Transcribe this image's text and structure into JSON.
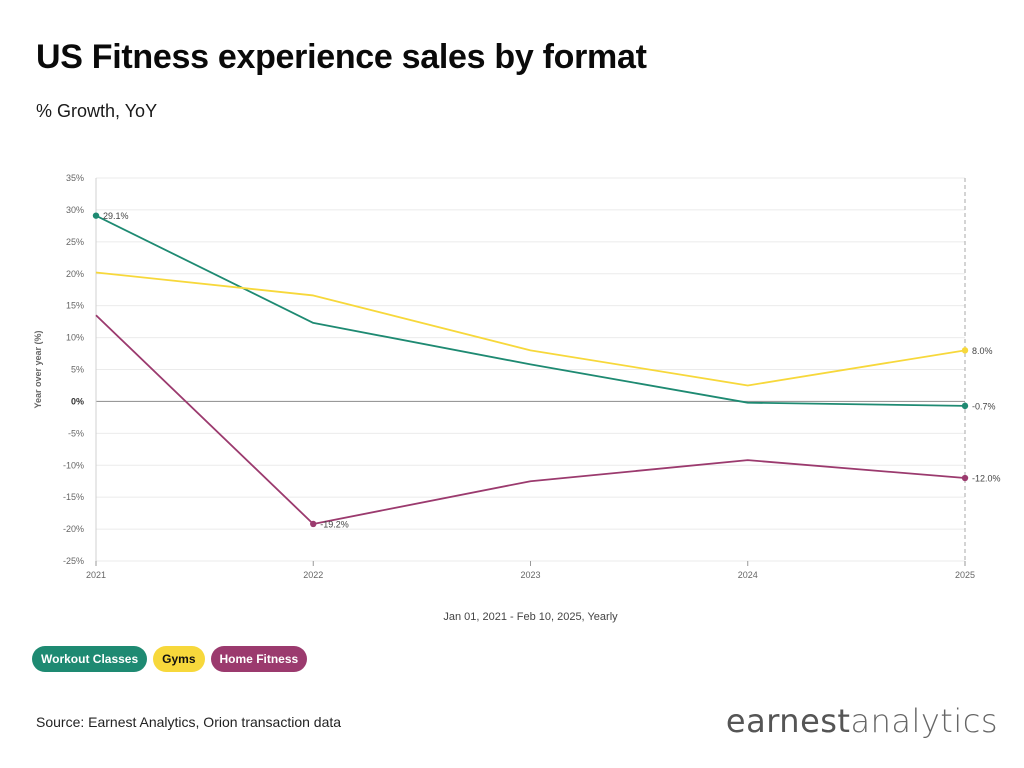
{
  "header": {
    "title": "US Fitness experience sales by format",
    "subtitle": "% Growth, YoY"
  },
  "colors": {
    "workout": "#1e8a72",
    "gyms": "#f7d83b",
    "home": "#9b3a6e",
    "grid": "#ebebeb",
    "zero": "#999999",
    "axis_text": "#666666"
  },
  "chart_data": {
    "type": "line",
    "title": "US Fitness experience sales by format",
    "subtitle": "% Growth, YoY",
    "xlabel": "Jan 01, 2021 - Feb 10, 2025, Yearly",
    "ylabel": "Year over year (%)",
    "x": [
      "2021",
      "2022",
      "2023",
      "2024",
      "2025"
    ],
    "ylim": [
      -25,
      35
    ],
    "yticks": [
      35,
      30,
      25,
      20,
      15,
      10,
      5,
      0,
      -5,
      -10,
      -15,
      -20,
      -25
    ],
    "ytick_labels": [
      "35%",
      "30%",
      "25%",
      "20%",
      "15%",
      "10%",
      "5%",
      "0%",
      "-5%",
      "-10%",
      "-15%",
      "-20%",
      "-25%"
    ],
    "grid": true,
    "series": [
      {
        "name": "Workout Classes",
        "color_key": "workout",
        "values": [
          29.1,
          12.3,
          5.8,
          -0.2,
          -0.7
        ]
      },
      {
        "name": "Gyms",
        "color_key": "gyms",
        "values": [
          20.2,
          16.6,
          8.0,
          2.5,
          8.0
        ]
      },
      {
        "name": "Home Fitness",
        "color_key": "home",
        "values": [
          13.5,
          -19.2,
          -12.5,
          -9.2,
          -12.0
        ]
      }
    ],
    "point_labels": [
      {
        "series": 0,
        "index": 0,
        "text": "29.1%"
      },
      {
        "series": 1,
        "index": 4,
        "text": "8.0%"
      },
      {
        "series": 0,
        "index": 4,
        "text": "-0.7%"
      },
      {
        "series": 2,
        "index": 1,
        "text": "-19.2%"
      },
      {
        "series": 2,
        "index": 4,
        "text": "-12.0%"
      }
    ]
  },
  "legend": [
    {
      "label": "Workout Classes",
      "color_key": "workout",
      "text_color": "#ffffff"
    },
    {
      "label": "Gyms",
      "color_key": "gyms",
      "text_color": "#111111"
    },
    {
      "label": "Home Fitness",
      "color_key": "home",
      "text_color": "#ffffff"
    }
  ],
  "footer": {
    "source": "Source: Earnest Analytics, Orion transaction data",
    "logo_part1": "earnest",
    "logo_part2": "analytics"
  }
}
